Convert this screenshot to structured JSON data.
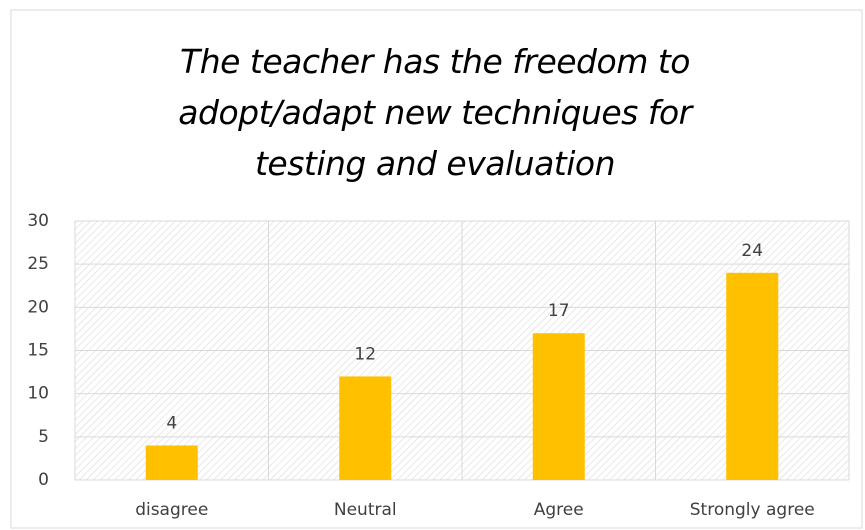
{
  "chart_data": {
    "type": "bar",
    "title": "The teacher has the freedom to adopt/adapt new techniques for testing and evaluation",
    "categories": [
      "disagree",
      "Neutral",
      "Agree",
      "Strongly agree"
    ],
    "values": [
      4,
      12,
      17,
      24
    ],
    "color": "#ffc000",
    "ylim": [
      0,
      30
    ],
    "yticks": [
      0,
      5,
      10,
      15,
      20,
      25,
      30
    ],
    "grid": true
  }
}
